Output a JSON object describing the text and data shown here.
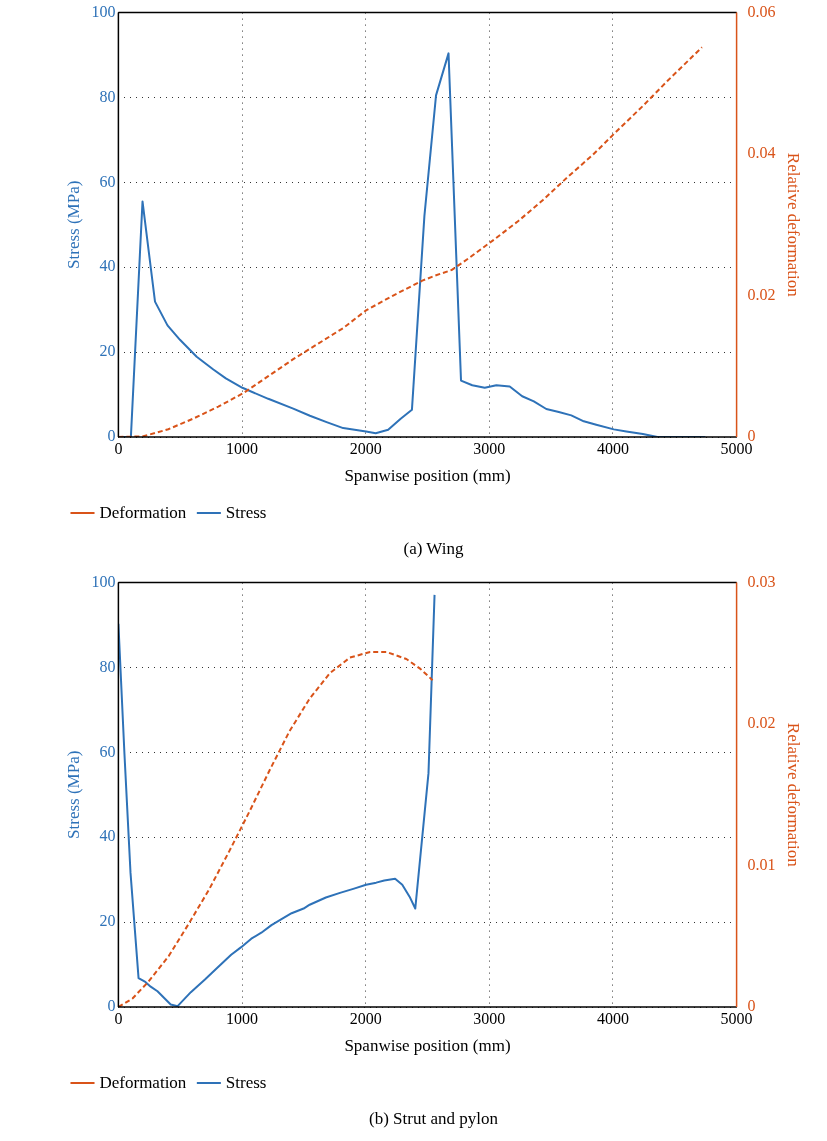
{
  "chart_data": [
    {
      "type": "line",
      "title": "(a) Wing",
      "xlabel": "Spanwise position (mm)",
      "ylabel": "Stress (MPa)",
      "y2label": "Relative deformation",
      "xlim": [
        0,
        5000
      ],
      "xticks": [
        0,
        1000,
        2000,
        3000,
        4000,
        5000
      ],
      "ylim": [
        0,
        100
      ],
      "yticks": [
        0,
        20,
        40,
        60,
        80,
        100
      ],
      "y2lim": [
        0,
        0.06
      ],
      "y2ticks": [
        0,
        0.02,
        0.04,
        0.06
      ],
      "grid": true,
      "legend": "bottom left",
      "series": [
        {
          "name": "Stress",
          "color": "#2e72b8",
          "line_style": "solid",
          "x": [
            0,
            101,
            195,
            296,
            397,
            498,
            633,
            768,
            869,
            1003,
            1212,
            1414,
            1549,
            1684,
            1818,
            2003,
            2081,
            2182,
            2283,
            2374,
            2475,
            2569,
            2670,
            2771,
            2862,
            2963,
            3057,
            3165,
            3266,
            3360,
            3461,
            3562,
            3663,
            3764,
            3865,
            4007,
            4108,
            4242,
            4360,
            4747
          ],
          "values": [
            0,
            0,
            55.5,
            31.9,
            26.3,
            22.9,
            18.9,
            15.9,
            13.8,
            11.6,
            9.0,
            6.7,
            5.0,
            3.5,
            2.1,
            1.3,
            0.9,
            1.7,
            4.3,
            6.4,
            52.1,
            80.5,
            90.4,
            13.3,
            12.2,
            11.6,
            12.2,
            11.9,
            9.6,
            8.4,
            6.6,
            5.9,
            5.1,
            3.7,
            2.9,
            1.8,
            1.3,
            0.7,
            0,
            0
          ]
        },
        {
          "name": "Deformation",
          "color": "#d95319",
          "line_style": "dashed",
          "axis": "y2",
          "x": [
            0,
            202,
            404,
            606,
            808,
            1010,
            1212,
            1414,
            1616,
            1818,
            2003,
            2222,
            2458,
            2559,
            2694,
            2828,
            3030,
            3232,
            3434,
            3636,
            3838,
            4040,
            4242,
            4444,
            4720
          ],
          "values": [
            0,
            0.0001,
            0.0011,
            0.0026,
            0.0043,
            0.0062,
            0.0086,
            0.011,
            0.0132,
            0.0154,
            0.0179,
            0.02,
            0.0221,
            0.0228,
            0.0236,
            0.0252,
            0.0278,
            0.0305,
            0.0335,
            0.0368,
            0.0399,
            0.0434,
            0.0468,
            0.0504,
            0.0551
          ]
        }
      ]
    },
    {
      "type": "line",
      "title": "(b) Strut and pylon",
      "xlabel": "Spanwise position (mm)",
      "ylabel": "Stress (MPa)",
      "y2label": "Relative deformation",
      "xlim": [
        0,
        5000
      ],
      "xticks": [
        0,
        1000,
        2000,
        3000,
        4000,
        5000
      ],
      "ylim": [
        0,
        100
      ],
      "yticks": [
        0,
        20,
        40,
        60,
        80,
        100
      ],
      "y2lim": [
        0,
        0.03
      ],
      "y2ticks": [
        0,
        0.01,
        0.02,
        0.03
      ],
      "grid": true,
      "legend": "bottom left",
      "series": [
        {
          "name": "Stress",
          "color": "#2e72b8",
          "line_style": "solid",
          "x": [
            0,
            49,
            98,
            163,
            218,
            261,
            316,
            423,
            479,
            586,
            700,
            798,
            912,
            993,
            1075,
            1156,
            1238,
            1319,
            1401,
            1498,
            1547,
            1678,
            1792,
            1906,
            2003,
            2085,
            2150,
            2238,
            2296,
            2355,
            2401,
            2508,
            2557
          ],
          "values": [
            90.3,
            59.6,
            31.6,
            6.8,
            5.9,
            4.8,
            3.7,
            0.6,
            0.2,
            3.5,
            6.5,
            9.2,
            12.3,
            14.1,
            16.1,
            17.5,
            19.3,
            20.7,
            22.1,
            23.2,
            24.1,
            25.8,
            26.9,
            27.9,
            28.8,
            29.3,
            29.8,
            30.2,
            28.8,
            26.0,
            23.2,
            55.1,
            97.1
          ]
        },
        {
          "name": "Deformation",
          "color": "#d95319",
          "line_style": "dashed",
          "axis": "y2",
          "x": [
            0,
            114,
            244,
            407,
            570,
            733,
            896,
            1059,
            1221,
            1384,
            1547,
            1710,
            1873,
            2036,
            2166,
            2329,
            2443,
            2541
          ],
          "values": [
            0,
            0.0006,
            0.0018,
            0.0036,
            0.0059,
            0.0083,
            0.011,
            0.0138,
            0.0167,
            0.0195,
            0.0218,
            0.0236,
            0.0247,
            0.0251,
            0.0251,
            0.0246,
            0.0239,
            0.0231
          ]
        }
      ]
    }
  ]
}
